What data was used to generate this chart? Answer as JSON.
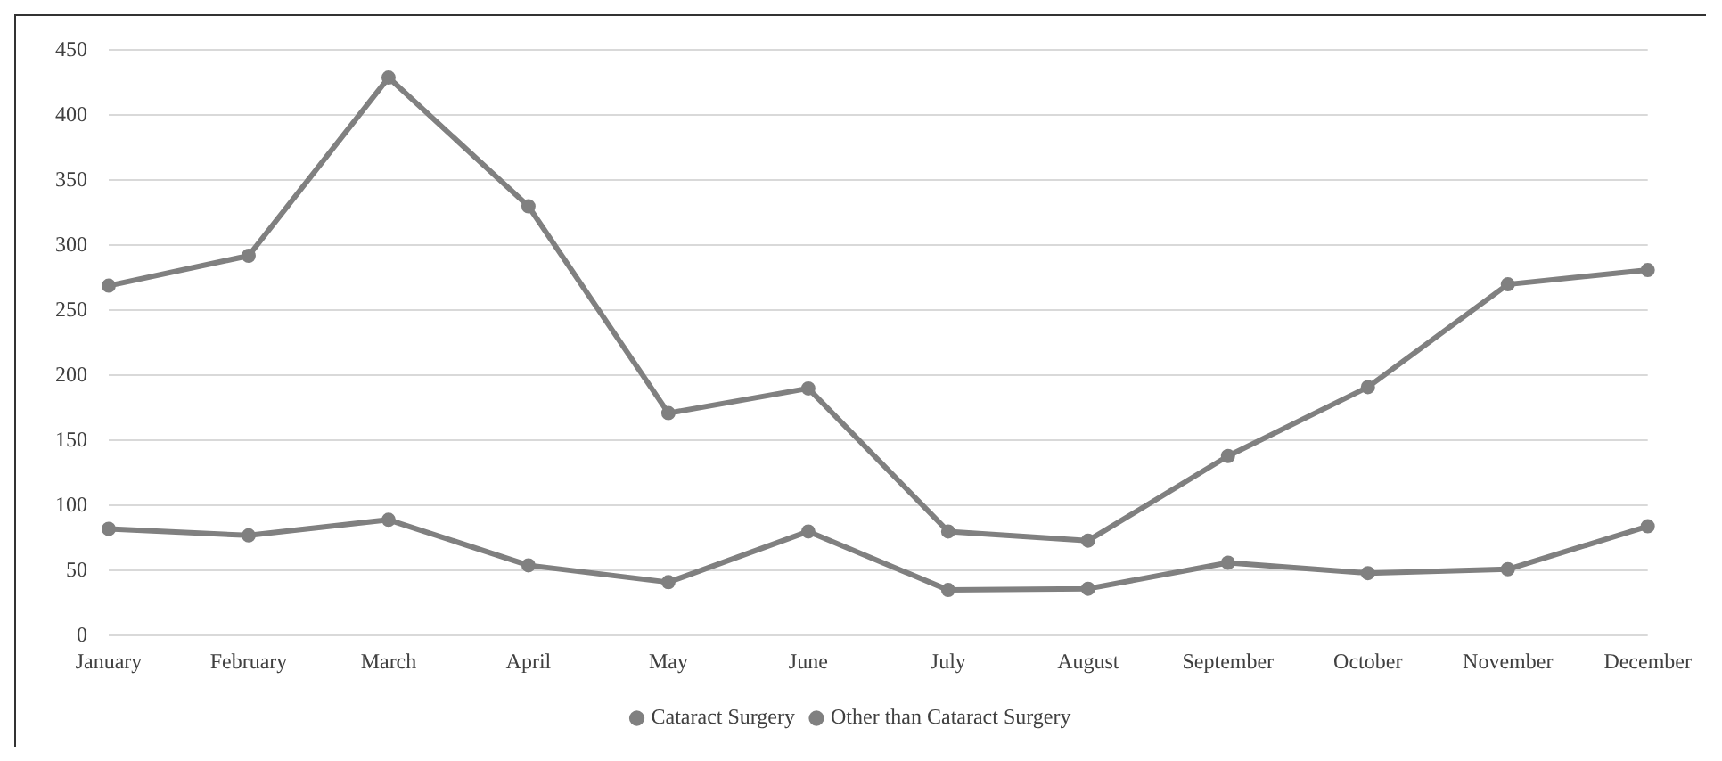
{
  "chart_data": {
    "type": "line",
    "categories": [
      "January",
      "February",
      "March",
      "April",
      "May",
      "June",
      "July",
      "August",
      "September",
      "October",
      "November",
      "December"
    ],
    "series": [
      {
        "name": "Cataract Surgery",
        "color": "#808080",
        "values": [
          269,
          292,
          429,
          330,
          171,
          190,
          80,
          73,
          138,
          191,
          270,
          281
        ]
      },
      {
        "name": "Other than Cataract Surgery",
        "color": "#808080",
        "values": [
          82,
          77,
          89,
          54,
          41,
          80,
          35,
          36,
          56,
          48,
          51,
          84
        ]
      }
    ],
    "ylim": [
      0,
      450
    ],
    "yticks": [
      0,
      50,
      100,
      150,
      200,
      250,
      300,
      350,
      400,
      450
    ],
    "grid": "y",
    "legend": "bottom",
    "marker": "circle",
    "line_style": "solid"
  }
}
